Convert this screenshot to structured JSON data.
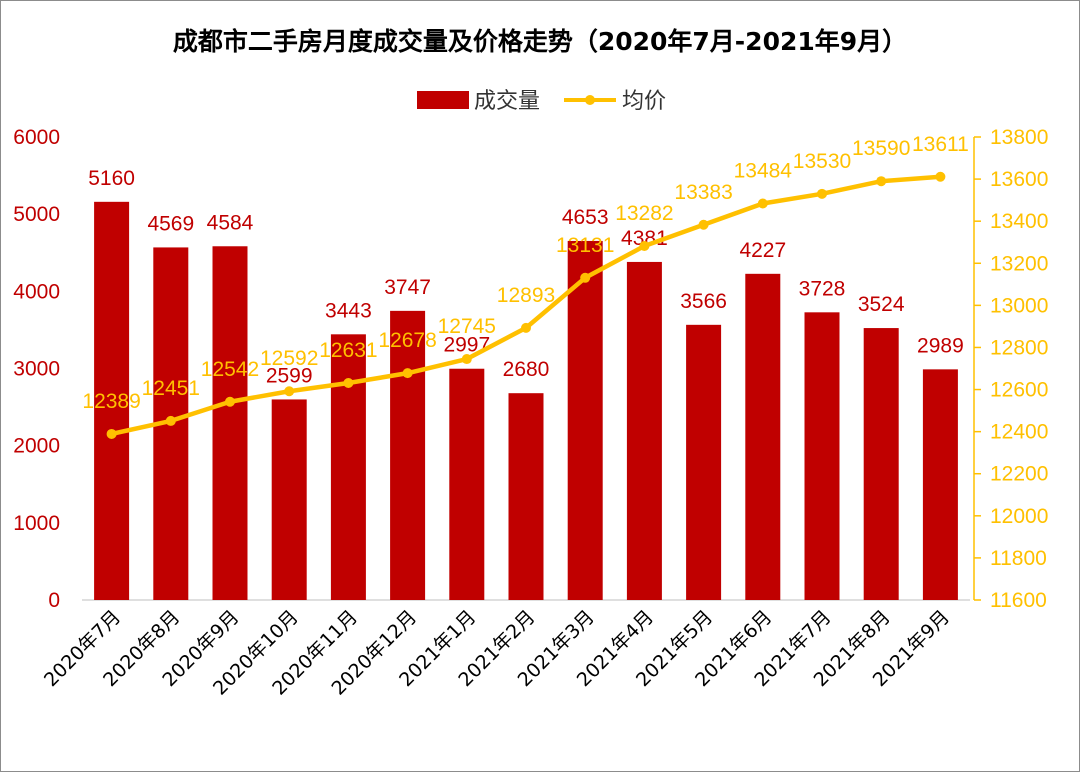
{
  "chart_data": {
    "type": "bar+line",
    "title": "成都市二手房月度成交量及价格走势（2020年7月-2021年9月）",
    "categories": [
      "2020年7月",
      "2020年8月",
      "2020年9月",
      "2020年10月",
      "2020年11月",
      "2020年12月",
      "2021年1月",
      "2021年2月",
      "2021年3月",
      "2021年4月",
      "2021年5月",
      "2021年6月",
      "2021年7月",
      "2021年8月",
      "2021年9月"
    ],
    "series": [
      {
        "name": "成交量",
        "type": "bar",
        "axis": "left",
        "color": "#c00000",
        "values": [
          5160,
          4569,
          4584,
          2599,
          3443,
          3747,
          2997,
          2680,
          4653,
          4381,
          3566,
          4227,
          3728,
          3524,
          2989
        ]
      },
      {
        "name": "均价",
        "type": "line",
        "axis": "right",
        "color": "#ffc000",
        "values": [
          12389,
          12451,
          12542,
          12592,
          12631,
          12678,
          12745,
          12893,
          13131,
          13282,
          13383,
          13484,
          13530,
          13590,
          13611
        ]
      }
    ],
    "y_left": {
      "min": 0,
      "max": 6000,
      "ticks": [
        "0",
        "1000",
        "2000",
        "3000",
        "4000",
        "5000",
        "6000"
      ],
      "color": "#c00000"
    },
    "y_right": {
      "min": 11600,
      "max": 13800,
      "ticks": [
        "11600",
        "11800",
        "12000",
        "12200",
        "12400",
        "12600",
        "12800",
        "13000",
        "13200",
        "13400",
        "13600",
        "13800"
      ],
      "color": "#ffc000"
    },
    "legend": "top-center",
    "grid": false
  }
}
